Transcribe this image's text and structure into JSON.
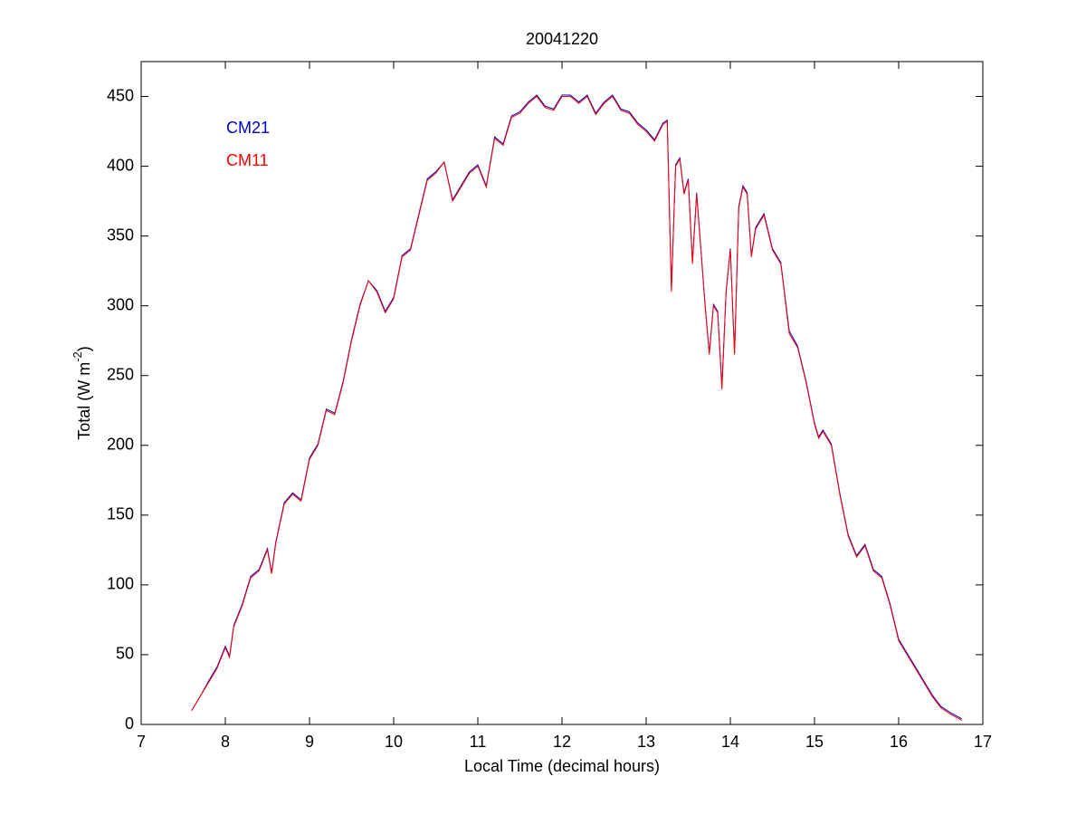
{
  "chart_data": {
    "type": "line",
    "title": "20041220",
    "xlabel": "Local Time (decimal hours)",
    "ylabel": {
      "text": "Total (W m",
      "superscript": "-2",
      "suffix": ")"
    },
    "xlim": [
      7,
      17
    ],
    "xticks": [
      7,
      8,
      9,
      10,
      11,
      12,
      13,
      14,
      15,
      16,
      17
    ],
    "ylim": [
      0,
      475
    ],
    "yticks": [
      0,
      50,
      100,
      150,
      200,
      250,
      300,
      350,
      400,
      450
    ],
    "legend": "upper-left",
    "x": [
      7.6,
      7.7,
      7.8,
      7.9,
      8.0,
      8.05,
      8.1,
      8.2,
      8.3,
      8.4,
      8.5,
      8.55,
      8.6,
      8.7,
      8.8,
      8.9,
      9.0,
      9.1,
      9.2,
      9.3,
      9.4,
      9.5,
      9.6,
      9.7,
      9.8,
      9.9,
      10.0,
      10.1,
      10.2,
      10.3,
      10.4,
      10.5,
      10.6,
      10.7,
      10.8,
      10.9,
      11.0,
      11.1,
      11.2,
      11.3,
      11.4,
      11.5,
      11.6,
      11.7,
      11.8,
      11.9,
      12.0,
      12.1,
      12.2,
      12.3,
      12.4,
      12.5,
      12.6,
      12.7,
      12.8,
      12.9,
      13.0,
      13.1,
      13.2,
      13.25,
      13.3,
      13.35,
      13.4,
      13.45,
      13.5,
      13.55,
      13.6,
      13.65,
      13.7,
      13.75,
      13.8,
      13.85,
      13.9,
      13.95,
      14.0,
      14.05,
      14.1,
      14.15,
      14.2,
      14.25,
      14.3,
      14.4,
      14.5,
      14.6,
      14.7,
      14.8,
      14.9,
      15.0,
      15.05,
      15.1,
      15.2,
      15.3,
      15.4,
      15.5,
      15.6,
      15.7,
      15.8,
      15.9,
      16.0,
      16.1,
      16.2,
      16.3,
      16.4,
      16.5,
      16.6,
      16.75
    ],
    "series": [
      {
        "name": "CM21",
        "color": "#0000cc",
        "values": [
          10,
          20,
          31,
          41,
          56,
          49,
          71,
          86,
          106,
          111,
          126,
          109,
          131,
          159,
          166,
          161,
          191,
          201,
          226,
          223,
          246,
          276,
          301,
          318,
          311,
          296,
          306,
          336,
          341,
          366,
          391,
          396,
          403,
          376,
          386,
          396,
          401,
          386,
          421,
          416,
          436,
          439,
          446,
          451,
          443,
          441,
          451,
          451,
          446,
          451,
          438,
          446,
          451,
          441,
          439,
          431,
          426,
          419,
          431,
          433,
          312,
          401,
          406,
          381,
          391,
          332,
          381,
          341,
          301,
          266,
          301,
          296,
          242,
          311,
          341,
          266,
          371,
          386,
          381,
          336,
          356,
          366,
          341,
          331,
          282,
          271,
          246,
          216,
          206,
          211,
          201,
          166,
          136,
          121,
          129,
          111,
          106,
          86,
          61,
          51,
          41,
          31,
          21,
          13,
          9,
          4
        ]
      },
      {
        "name": "CM11",
        "color": "#ff0000",
        "values": [
          10,
          20,
          30,
          40,
          55,
          48,
          70,
          85,
          105,
          110,
          125,
          108,
          130,
          158,
          165,
          160,
          190,
          200,
          225,
          222,
          245,
          275,
          300,
          318,
          310,
          295,
          305,
          335,
          340,
          365,
          390,
          395,
          403,
          375,
          385,
          395,
          400,
          385,
          420,
          415,
          435,
          438,
          445,
          450,
          442,
          440,
          450,
          450,
          445,
          450,
          437,
          445,
          450,
          440,
          438,
          430,
          425,
          418,
          430,
          432,
          310,
          400,
          405,
          380,
          390,
          330,
          380,
          340,
          300,
          265,
          300,
          295,
          240,
          310,
          340,
          265,
          370,
          385,
          380,
          335,
          355,
          365,
          340,
          330,
          280,
          270,
          245,
          215,
          205,
          210,
          200,
          165,
          135,
          120,
          128,
          110,
          105,
          85,
          60,
          50,
          40,
          30,
          20,
          12,
          8,
          3
        ]
      }
    ]
  }
}
